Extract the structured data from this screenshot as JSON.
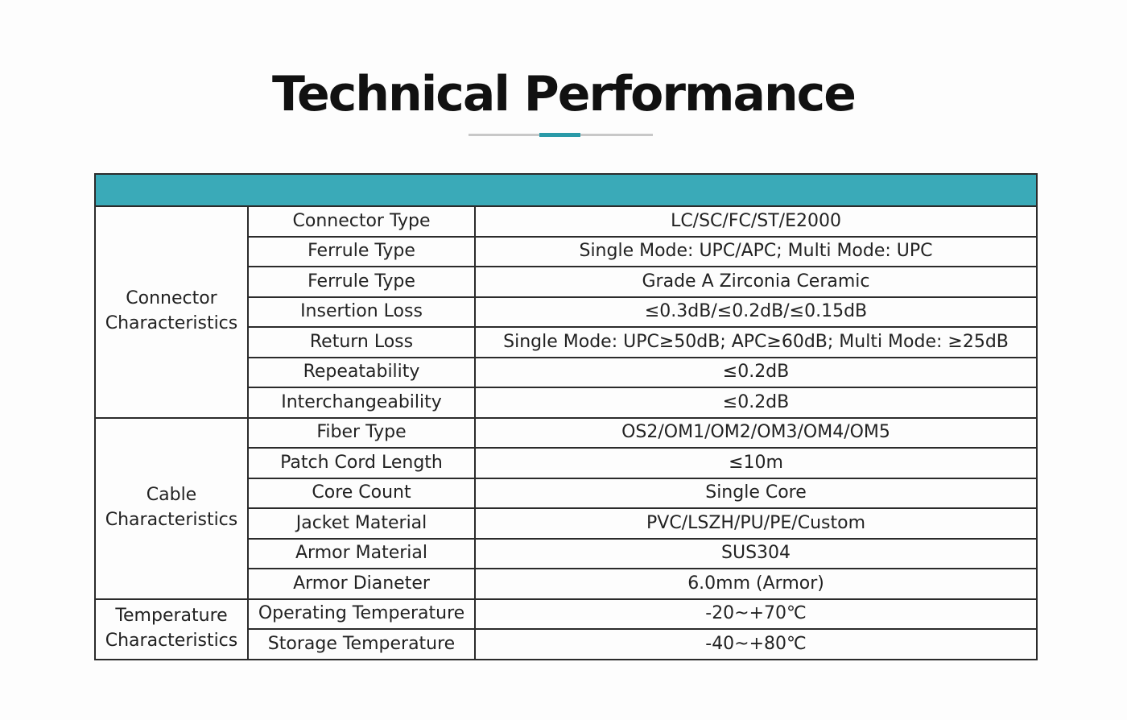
{
  "title": "Technical Performance",
  "colors": {
    "accent": "#3aaab8",
    "divider_grey": "#c8c8c8"
  },
  "table": {
    "groups": [
      {
        "label": "Connector Characteristics",
        "rows": [
          {
            "param": "Connector Type",
            "value": "LC/SC/FC/ST/E2000"
          },
          {
            "param": "Ferrule Type",
            "value": "Single Mode: UPC/APC; Multi Mode: UPC"
          },
          {
            "param": "Ferrule Type",
            "value": "Grade A Zirconia Ceramic"
          },
          {
            "param": "Insertion Loss",
            "value": "≤0.3dB/≤0.2dB/≤0.15dB"
          },
          {
            "param": "Return Loss",
            "value": "Single Mode: UPC≥50dB; APC≥60dB; Multi Mode: ≥25dB"
          },
          {
            "param": "Repeatability",
            "value": "≤0.2dB"
          },
          {
            "param": "Interchangeability",
            "value": "≤0.2dB"
          }
        ]
      },
      {
        "label": "Cable Characteristics",
        "rows": [
          {
            "param": "Fiber Type",
            "value": "OS2/OM1/OM2/OM3/OM4/OM5"
          },
          {
            "param": "Patch Cord Length",
            "value": "≤10m"
          },
          {
            "param": "Core Count",
            "value": "Single Core"
          },
          {
            "param": "Jacket Material",
            "value": "PVC/LSZH/PU/PE/Custom"
          },
          {
            "param": "Armor Material",
            "value": "SUS304"
          },
          {
            "param": "Armor Dianeter",
            "value": "6.0mm (Armor)"
          }
        ]
      },
      {
        "label": "Temperature Characteristics",
        "rows": [
          {
            "param": "Operating Temperature",
            "value": "-20~+70℃"
          },
          {
            "param": "Storage Temperature",
            "value": "-40~+80℃"
          }
        ]
      }
    ]
  }
}
